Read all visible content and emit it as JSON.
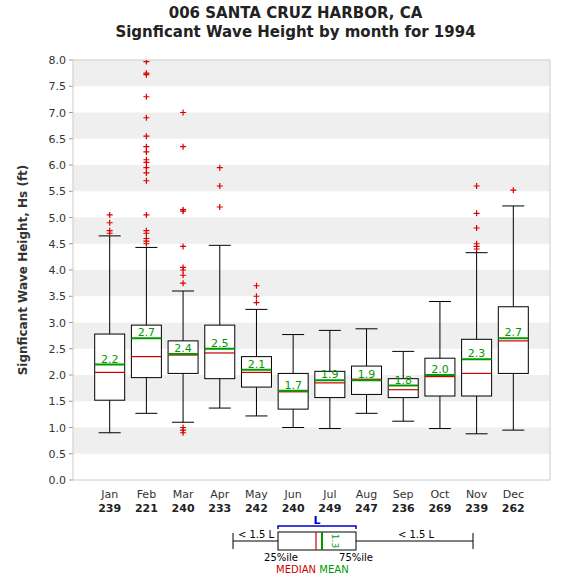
{
  "chart_data": {
    "type": "box",
    "title": "006   SANTA CRUZ HARBOR, CA",
    "subtitle": "Signficant Wave Height by month for 1994",
    "y_label": "Signficant Wave Height, Hs (ft)",
    "categories": [
      "Jan",
      "Feb",
      "Mar",
      "Apr",
      "May",
      "Jun",
      "Jul",
      "Aug",
      "Sep",
      "Oct",
      "Nov",
      "Dec"
    ],
    "counts": [
      239,
      221,
      240,
      233,
      242,
      240,
      249,
      247,
      236,
      269,
      239,
      262
    ],
    "whisker_low": [
      0.9,
      1.27,
      1.1,
      1.37,
      1.22,
      1.0,
      0.98,
      1.27,
      1.12,
      0.98,
      0.88,
      0.95
    ],
    "q1": [
      1.52,
      1.95,
      2.03,
      1.93,
      1.77,
      1.35,
      1.57,
      1.63,
      1.57,
      1.6,
      1.6,
      2.03
    ],
    "median": [
      2.05,
      2.35,
      2.38,
      2.42,
      2.05,
      1.68,
      1.85,
      1.92,
      1.72,
      1.97,
      2.03,
      2.65
    ],
    "mean": [
      2.2,
      2.7,
      2.4,
      2.5,
      2.1,
      1.7,
      1.9,
      1.9,
      1.8,
      2.0,
      2.3,
      2.7
    ],
    "value_labels": [
      "2.2",
      "2.7",
      "2.4",
      "2.5",
      "2.1",
      "1.7",
      "1.9",
      "1.9",
      "1.8",
      "2.0",
      "2.3",
      "2.7"
    ],
    "q3": [
      2.78,
      2.95,
      2.65,
      2.95,
      2.35,
      2.03,
      2.07,
      2.17,
      1.93,
      2.32,
      2.68,
      3.3
    ],
    "whisker_high": [
      4.65,
      4.43,
      3.6,
      4.47,
      3.25,
      2.77,
      2.85,
      2.88,
      2.45,
      3.4,
      4.33,
      5.22
    ],
    "outliers": [
      [
        5.05,
        4.9,
        4.75,
        4.7
      ],
      [
        7.97,
        7.75,
        7.72,
        7.3,
        6.9,
        6.55,
        6.35,
        6.25,
        6.1,
        6.05,
        5.95,
        5.85,
        5.7,
        5.05,
        4.75,
        4.7,
        4.6,
        4.55,
        4.5
      ],
      [
        7.0,
        6.35,
        5.15,
        5.12,
        4.45,
        4.05,
        4.0,
        3.9,
        3.75,
        1.0,
        0.95,
        0.9
      ],
      [
        5.95,
        5.6,
        5.2
      ],
      [
        3.7,
        3.5,
        3.38
      ],
      [],
      [],
      [],
      [],
      [],
      [
        5.6,
        5.08,
        4.8,
        4.5,
        4.45,
        4.4
      ],
      [
        5.52
      ]
    ],
    "ylim": [
      0,
      8
    ],
    "yticks": [
      {
        "value": 0,
        "label": "0.0"
      },
      0.5,
      {
        "value": 1,
        "label": "1.0"
      },
      1.5,
      {
        "value": 2,
        "label": "2.0"
      },
      2.5,
      {
        "value": 3,
        "label": "3.0"
      },
      3.5,
      {
        "value": 4,
        "label": "4.0"
      },
      4.5,
      {
        "value": 5,
        "label": "5.0"
      },
      5.5,
      {
        "value": 6,
        "label": "6.0"
      },
      6.5,
      {
        "value": 7,
        "label": "7.0"
      },
      7.5,
      {
        "value": 8,
        "label": "8.0"
      }
    ],
    "grid": true,
    "data_labels": true,
    "legend_key": {
      "length": "L",
      "left": "< 1.5 L",
      "right": "< 1.5 L",
      "q1": "25%ile",
      "q3": "75%ile",
      "median": "MEDIAN",
      "mean": "MEAN",
      "mean_value": "1.3"
    },
    "colors": {
      "box": "#000000",
      "median": "#cc0000",
      "mean": "#009900",
      "outlier": "#dd0000",
      "band": "#efefef",
      "key_length": "#0000cc"
    }
  }
}
